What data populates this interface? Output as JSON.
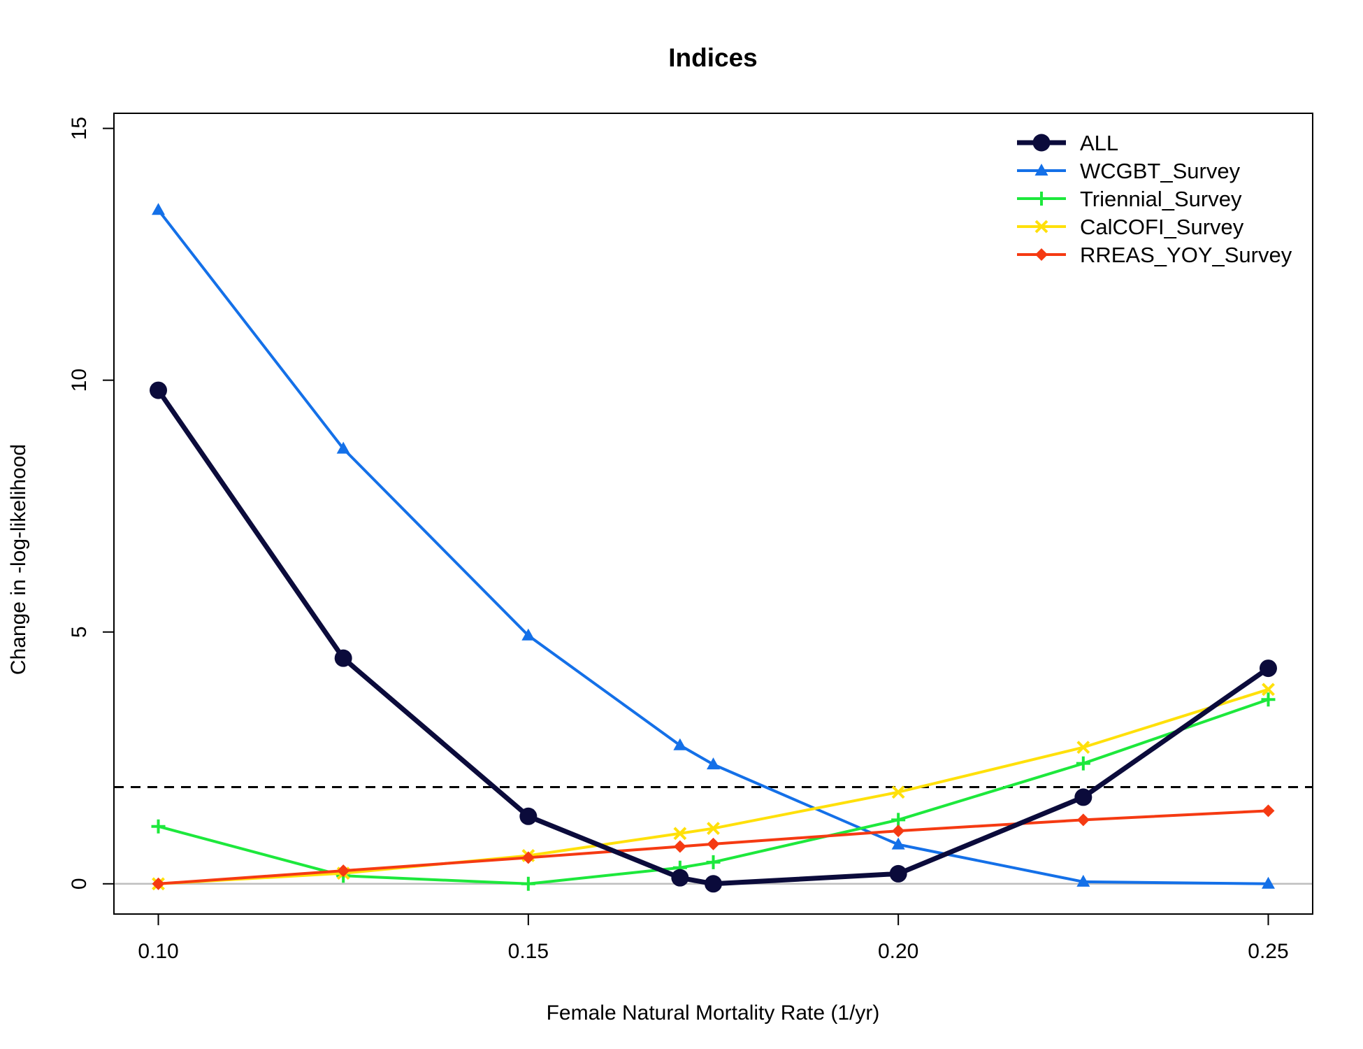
{
  "chart_data": {
    "type": "line",
    "title": "Indices",
    "xlabel": "Female Natural Mortality Rate (1/yr)",
    "ylabel": "Change in -log-likelihood",
    "xlim": [
      0.094,
      0.256
    ],
    "ylim": [
      -0.6,
      15.3
    ],
    "x_ticks": [
      0.1,
      0.15,
      0.2,
      0.25
    ],
    "x_tick_labels": [
      "0.10",
      "0.15",
      "0.20",
      "0.25"
    ],
    "y_ticks": [
      0,
      5,
      10,
      15
    ],
    "y_tick_labels": [
      "0",
      "5",
      "10",
      "15"
    ],
    "x": [
      0.1,
      0.125,
      0.15,
      0.1705,
      0.175,
      0.2,
      0.225,
      0.25
    ],
    "reference_lines": [
      {
        "kind": "dashed",
        "y": 1.92,
        "color": "#000000"
      },
      {
        "kind": "solid",
        "y": 0,
        "color": "#bebebe"
      }
    ],
    "legend_position": "top-right",
    "grid": false,
    "series": [
      {
        "name": "ALL",
        "color": "#0b0b3b",
        "marker": "circle",
        "line_width": 7,
        "values": [
          9.8,
          4.48,
          1.34,
          0.12,
          0.0,
          0.2,
          1.72,
          4.28
        ]
      },
      {
        "name": "WCGBT_Survey",
        "color": "#1470e8",
        "marker": "triangle",
        "line_width": 4,
        "values": [
          13.38,
          8.64,
          4.93,
          2.75,
          2.37,
          0.78,
          0.04,
          0.0
        ]
      },
      {
        "name": "Triennial_Survey",
        "color": "#1de83c",
        "marker": "plus",
        "line_width": 4,
        "values": [
          1.14,
          0.16,
          0.0,
          0.32,
          0.43,
          1.27,
          2.39,
          3.66
        ]
      },
      {
        "name": "CalCOFI_Survey",
        "color": "#ffe00a",
        "marker": "x",
        "line_width": 4,
        "values": [
          0.0,
          0.21,
          0.56,
          1.0,
          1.1,
          1.82,
          2.71,
          3.86
        ]
      },
      {
        "name": "RREAS_YOY_Survey",
        "color": "#f53a12",
        "marker": "diamond",
        "line_width": 4,
        "values": [
          0.0,
          0.26,
          0.52,
          0.74,
          0.79,
          1.05,
          1.27,
          1.45
        ]
      }
    ]
  }
}
